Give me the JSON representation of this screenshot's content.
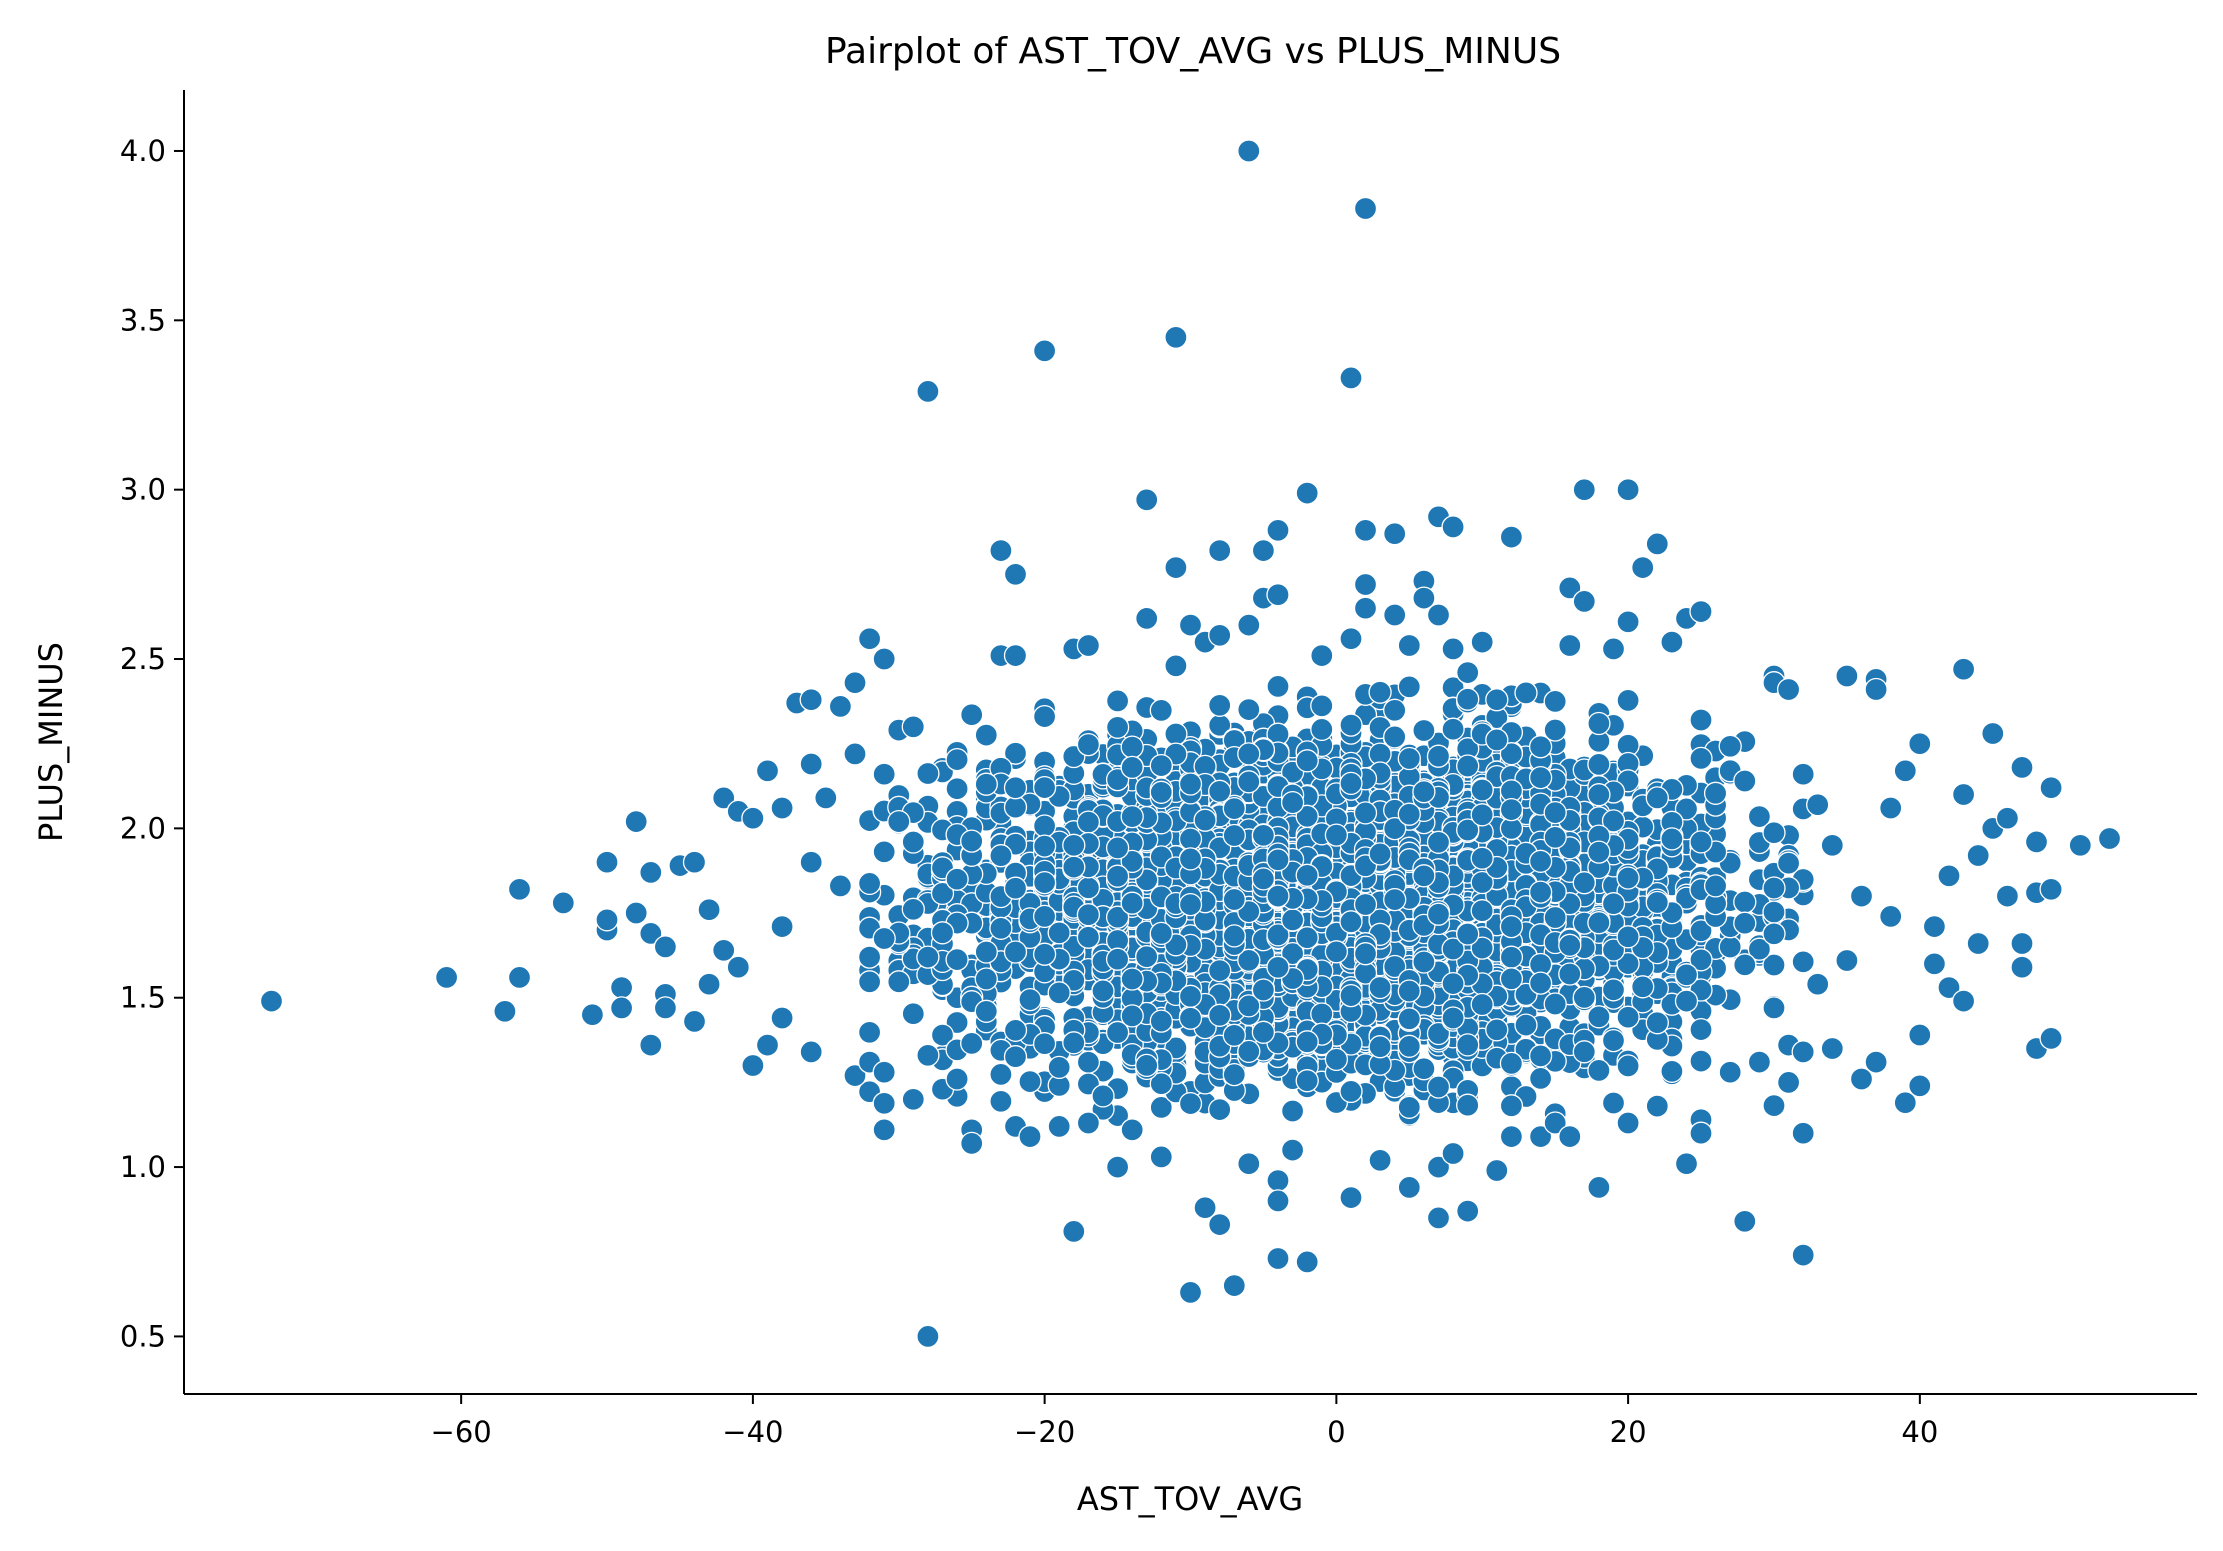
{
  "chart_data": {
    "type": "scatter",
    "title": "Pairplot of AST_TOV_AVG vs PLUS_MINUS",
    "xlabel": "AST_TOV_AVG",
    "ylabel": "PLUS_MINUS",
    "xlim": [
      -79,
      59
    ],
    "ylim": [
      0.33,
      4.18
    ],
    "grid": false,
    "marker_color": "#1f77b4",
    "marker_edge_color": "#ffffff",
    "x_ticks": [
      {
        "value": -60,
        "label": "−60"
      },
      {
        "value": -40,
        "label": "−40"
      },
      {
        "value": -20,
        "label": "−20"
      },
      {
        "value": 0,
        "label": "0"
      },
      {
        "value": 20,
        "label": "20"
      },
      {
        "value": 40,
        "label": "40"
      }
    ],
    "y_ticks": [
      {
        "value": 0.5,
        "label": "0.5"
      },
      {
        "value": 1.0,
        "label": "1.0"
      },
      {
        "value": 1.5,
        "label": "1.5"
      },
      {
        "value": 2.0,
        "label": "2.0"
      },
      {
        "value": 2.5,
        "label": "2.5"
      },
      {
        "value": 3.0,
        "label": "3.0"
      },
      {
        "value": 3.5,
        "label": "3.5"
      },
      {
        "value": 4.0,
        "label": "4.0"
      }
    ],
    "series": [
      {
        "name": "AST_TOV_AVG vs PLUS_MINUS",
        "points": [
          [
            -73,
            1.49
          ],
          [
            -61,
            1.56
          ],
          [
            -57,
            1.46
          ],
          [
            -56,
            1.82
          ],
          [
            -56,
            1.56
          ],
          [
            -53,
            1.78
          ],
          [
            -51,
            1.45
          ],
          [
            -50,
            1.9
          ],
          [
            -50,
            1.7
          ],
          [
            -50,
            1.73
          ],
          [
            -49,
            1.53
          ],
          [
            -49,
            1.47
          ],
          [
            -48,
            2.02
          ],
          [
            -48,
            1.75
          ],
          [
            -47,
            1.87
          ],
          [
            -47,
            1.69
          ],
          [
            -47,
            1.36
          ],
          [
            -46,
            1.65
          ],
          [
            -46,
            1.51
          ],
          [
            -46,
            1.47
          ],
          [
            -45,
            1.89
          ],
          [
            -44,
            1.9
          ],
          [
            -44,
            1.43
          ],
          [
            -43,
            1.76
          ],
          [
            -43,
            1.54
          ],
          [
            -42,
            2.09
          ],
          [
            -42,
            1.64
          ],
          [
            -41,
            2.05
          ],
          [
            -41,
            1.59
          ],
          [
            -40,
            2.03
          ],
          [
            -40,
            1.3
          ],
          [
            -39,
            2.17
          ],
          [
            -39,
            1.36
          ],
          [
            -38,
            2.06
          ],
          [
            -38,
            1.44
          ],
          [
            -37,
            2.37
          ],
          [
            -36,
            2.38
          ],
          [
            -36,
            2.19
          ],
          [
            -36,
            1.34
          ],
          [
            -35,
            2.09
          ],
          [
            -34,
            2.36
          ],
          [
            -33,
            2.43
          ],
          [
            -33,
            2.22
          ],
          [
            -33,
            1.27
          ],
          [
            -32,
            2.56
          ],
          [
            -32,
            1.31
          ],
          [
            -31,
            2.5
          ],
          [
            -31,
            2.16
          ],
          [
            -31,
            1.28
          ],
          [
            -31,
            1.11
          ],
          [
            -30,
            2.29
          ],
          [
            -29,
            2.3
          ],
          [
            -29,
            1.2
          ],
          [
            -28,
            3.29
          ],
          [
            -28,
            0.5
          ],
          [
            -28,
            1.33
          ],
          [
            -27,
            1.23
          ],
          [
            -26,
            1.26
          ],
          [
            -25,
            1.11
          ],
          [
            -25,
            1.07
          ],
          [
            -23,
            2.82
          ],
          [
            -23,
            2.51
          ],
          [
            -22,
            2.75
          ],
          [
            -22,
            2.51
          ],
          [
            -22,
            1.12
          ],
          [
            -21,
            1.09
          ],
          [
            -20,
            3.41
          ],
          [
            -20,
            2.33
          ],
          [
            -19,
            1.12
          ],
          [
            -18,
            2.53
          ],
          [
            -18,
            0.81
          ],
          [
            -17,
            2.54
          ],
          [
            -17,
            1.13
          ],
          [
            -16,
            1.21
          ],
          [
            -15,
            1.0
          ],
          [
            -14,
            1.11
          ],
          [
            -13,
            2.97
          ],
          [
            -13,
            2.62
          ],
          [
            -12,
            1.03
          ],
          [
            -11,
            3.45
          ],
          [
            -11,
            2.77
          ],
          [
            -11,
            2.48
          ],
          [
            -10,
            2.6
          ],
          [
            -10,
            0.63
          ],
          [
            -9,
            2.55
          ],
          [
            -9,
            0.88
          ],
          [
            -8,
            2.82
          ],
          [
            -8,
            2.57
          ],
          [
            -8,
            0.83
          ],
          [
            -7,
            0.65
          ],
          [
            -6,
            4.0
          ],
          [
            -6,
            2.6
          ],
          [
            -6,
            1.01
          ],
          [
            -5,
            2.82
          ],
          [
            -5,
            2.68
          ],
          [
            -4,
            2.88
          ],
          [
            -4,
            2.69
          ],
          [
            -4,
            0.96
          ],
          [
            -4,
            0.9
          ],
          [
            -4,
            0.73
          ],
          [
            -3,
            1.05
          ],
          [
            -2,
            2.99
          ],
          [
            -2,
            0.72
          ],
          [
            -1,
            2.51
          ],
          [
            1,
            3.33
          ],
          [
            1,
            2.56
          ],
          [
            1,
            0.91
          ],
          [
            2,
            3.83
          ],
          [
            2,
            2.88
          ],
          [
            2,
            2.72
          ],
          [
            2,
            2.65
          ],
          [
            3,
            1.02
          ],
          [
            4,
            2.87
          ],
          [
            4,
            2.63
          ],
          [
            5,
            2.54
          ],
          [
            5,
            0.94
          ],
          [
            6,
            2.73
          ],
          [
            6,
            2.68
          ],
          [
            7,
            2.92
          ],
          [
            7,
            2.63
          ],
          [
            7,
            0.85
          ],
          [
            7,
            1.0
          ],
          [
            8,
            2.89
          ],
          [
            8,
            2.53
          ],
          [
            8,
            1.04
          ],
          [
            9,
            2.46
          ],
          [
            9,
            0.87
          ],
          [
            10,
            2.55
          ],
          [
            11,
            2.38
          ],
          [
            11,
            0.99
          ],
          [
            12,
            2.86
          ],
          [
            12,
            1.09
          ],
          [
            13,
            2.4
          ],
          [
            14,
            1.09
          ],
          [
            15,
            1.13
          ],
          [
            16,
            2.71
          ],
          [
            16,
            2.54
          ],
          [
            16,
            1.09
          ],
          [
            17,
            3.0
          ],
          [
            17,
            2.67
          ],
          [
            18,
            0.94
          ],
          [
            19,
            2.53
          ],
          [
            20,
            3.0
          ],
          [
            20,
            2.61
          ],
          [
            20,
            1.13
          ],
          [
            21,
            2.77
          ],
          [
            22,
            2.84
          ],
          [
            22,
            1.18
          ],
          [
            23,
            2.55
          ],
          [
            24,
            2.62
          ],
          [
            24,
            1.01
          ],
          [
            25,
            2.64
          ],
          [
            25,
            1.14
          ],
          [
            25,
            1.1
          ],
          [
            27,
            1.28
          ],
          [
            28,
            0.84
          ],
          [
            29,
            1.31
          ],
          [
            30,
            2.45
          ],
          [
            30,
            2.43
          ],
          [
            30,
            1.47
          ],
          [
            31,
            2.41
          ],
          [
            31,
            1.25
          ],
          [
            31,
            1.36
          ],
          [
            32,
            2.16
          ],
          [
            32,
            1.1
          ],
          [
            32,
            0.74
          ],
          [
            32,
            1.34
          ],
          [
            33,
            2.07
          ],
          [
            33,
            1.54
          ],
          [
            34,
            1.35
          ],
          [
            35,
            2.45
          ],
          [
            35,
            1.61
          ],
          [
            36,
            1.26
          ],
          [
            37,
            2.44
          ],
          [
            37,
            2.41
          ],
          [
            37,
            1.31
          ],
          [
            38,
            2.06
          ],
          [
            38,
            1.74
          ],
          [
            39,
            2.17
          ],
          [
            39,
            1.19
          ],
          [
            40,
            2.25
          ],
          [
            40,
            1.39
          ],
          [
            40,
            1.24
          ],
          [
            41,
            1.71
          ],
          [
            41,
            1.6
          ],
          [
            42,
            1.86
          ],
          [
            42,
            1.53
          ],
          [
            43,
            2.47
          ],
          [
            43,
            2.1
          ],
          [
            43,
            1.49
          ],
          [
            44,
            1.92
          ],
          [
            44,
            1.66
          ],
          [
            45,
            2.28
          ],
          [
            45,
            2.0
          ],
          [
            46,
            2.03
          ],
          [
            46,
            1.8
          ],
          [
            47,
            2.18
          ],
          [
            47,
            1.66
          ],
          [
            47,
            1.59
          ],
          [
            48,
            1.96
          ],
          [
            48,
            1.81
          ],
          [
            48,
            1.35
          ],
          [
            49,
            2.12
          ],
          [
            49,
            1.82
          ],
          [
            49,
            1.38
          ],
          [
            51,
            1.95
          ],
          [
            53,
            1.97
          ],
          [
            -30,
            2.02
          ],
          [
            -28,
            1.62
          ],
          [
            -26,
            1.85
          ],
          [
            -24,
            1.46
          ],
          [
            -22,
            2.12
          ],
          [
            -20,
            1.74
          ],
          [
            -18,
            1.95
          ],
          [
            -16,
            1.52
          ],
          [
            -14,
            2.18
          ],
          [
            -12,
            1.69
          ],
          [
            -10,
            1.91
          ],
          [
            -8,
            1.58
          ],
          [
            -6,
            2.22
          ],
          [
            -4,
            1.8
          ],
          [
            -2,
            1.37
          ],
          [
            0,
            1.98
          ],
          [
            2,
            1.63
          ],
          [
            4,
            2.27
          ],
          [
            6,
            1.86
          ],
          [
            8,
            1.44
          ],
          [
            10,
            2.04
          ],
          [
            12,
            1.71
          ],
          [
            14,
            2.15
          ],
          [
            16,
            1.57
          ],
          [
            18,
            1.93
          ],
          [
            20,
            1.68
          ],
          [
            22,
            2.09
          ],
          [
            24,
            1.49
          ],
          [
            26,
            1.83
          ],
          [
            28,
            1.72
          ],
          [
            -34,
            1.83
          ],
          [
            -32,
            1.62
          ],
          [
            -36,
            1.9
          ],
          [
            -38,
            1.71
          ],
          [
            34,
            1.95
          ],
          [
            36,
            1.8
          ]
        ]
      }
    ]
  }
}
